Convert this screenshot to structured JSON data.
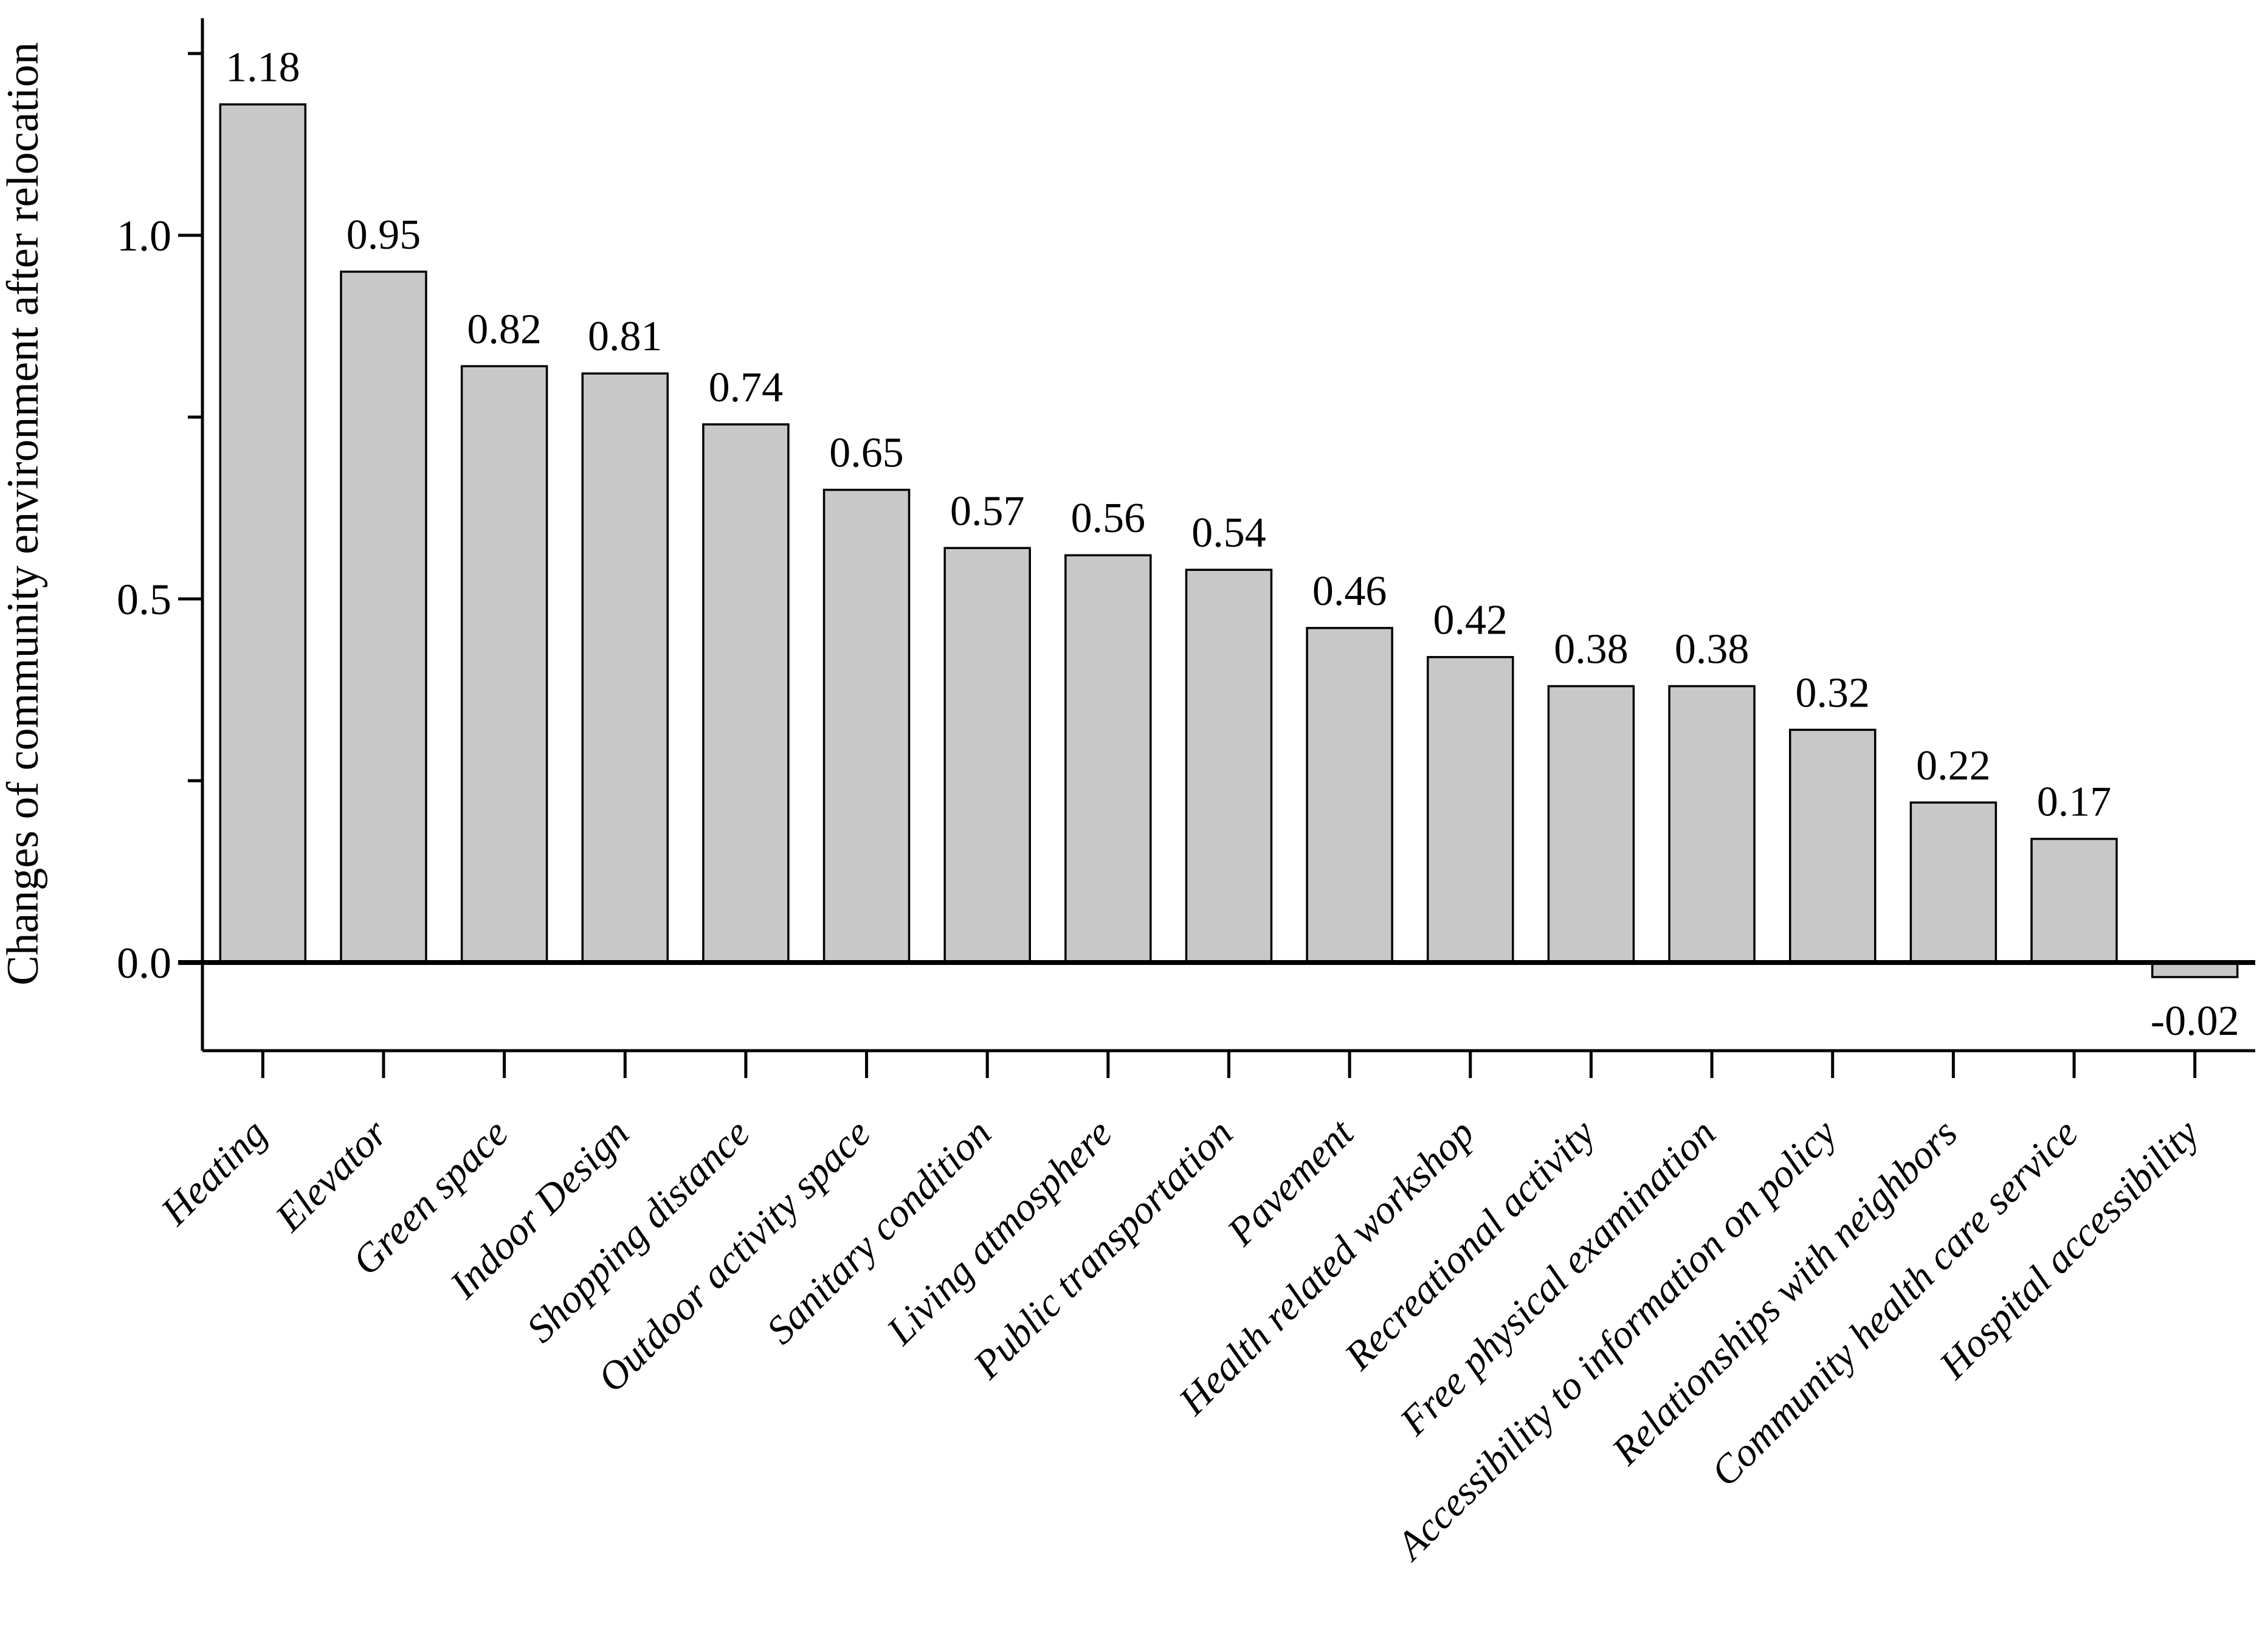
{
  "figure": {
    "background": "#ffffff",
    "bar_fill": "#c8c8c8",
    "bar_stroke": "#000000",
    "axis_color": "#000000"
  },
  "chart_data": {
    "type": "bar",
    "title": "",
    "xlabel": "",
    "ylabel": "Changes of community environment after relocation",
    "grid": false,
    "legend": null,
    "bar_value_labels_position": "above-bar (below bar when negative)",
    "x_label_rotation_deg": -45,
    "ylim": [
      -0.12,
      1.3
    ],
    "yticks_major": [
      {
        "value": 0.0,
        "label": "0.0"
      },
      {
        "value": 0.5,
        "label": "0.5"
      },
      {
        "value": 1.0,
        "label": "1.0"
      }
    ],
    "yticks_minor": [
      0.25,
      0.75,
      1.25
    ],
    "categories": [
      "Heating",
      "Elevator",
      "Green space",
      "Indoor Design",
      "Shopping distance",
      "Outdoor activity space",
      "Sanitary condition",
      "Living atmosphere",
      "Public transportation",
      "Pavement",
      "Health related workshop",
      "Recreational activity",
      "Free physical examination",
      "Accessibility to information on policy",
      "Relationships with neighbors",
      "Community health care service",
      "Hospital accessibility"
    ],
    "values": [
      1.18,
      0.95,
      0.82,
      0.81,
      0.74,
      0.65,
      0.57,
      0.56,
      0.54,
      0.46,
      0.42,
      0.38,
      0.38,
      0.32,
      0.22,
      0.17,
      -0.02
    ],
    "value_labels": [
      "1.18",
      "0.95",
      "0.82",
      "0.81",
      "0.74",
      "0.65",
      "0.57",
      "0.56",
      "0.54",
      "0.46",
      "0.42",
      "0.38",
      "0.38",
      "0.32",
      "0.22",
      "0.17",
      "-0.02"
    ]
  }
}
